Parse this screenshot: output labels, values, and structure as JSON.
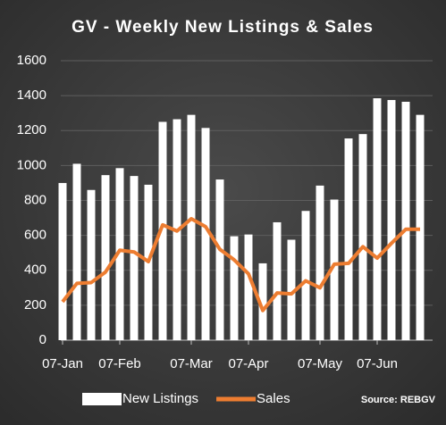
{
  "chart_data": {
    "type": "bar_line",
    "title": "GV - Weekly New Listings & Sales",
    "categories": [
      "07-Jan",
      null,
      null,
      null,
      "07-Feb",
      null,
      null,
      null,
      null,
      "07-Mar",
      null,
      null,
      null,
      "07-Apr",
      null,
      null,
      null,
      null,
      "07-May",
      null,
      null,
      null,
      "07-Jun",
      null,
      null,
      null
    ],
    "series": [
      {
        "name": "New Listings",
        "type": "bar",
        "color": "#ffffff",
        "values": [
          900,
          1010,
          860,
          945,
          985,
          940,
          890,
          1250,
          1265,
          1290,
          1215,
          920,
          595,
          605,
          440,
          675,
          575,
          740,
          885,
          805,
          1155,
          1180,
          1385,
          1375,
          1365,
          1290
        ]
      },
      {
        "name": "Sales",
        "type": "line",
        "color": "#ed7d31",
        "values": [
          220,
          325,
          330,
          390,
          515,
          505,
          450,
          660,
          625,
          695,
          650,
          520,
          460,
          380,
          170,
          270,
          265,
          340,
          300,
          435,
          440,
          535,
          470,
          555,
          635,
          635
        ]
      }
    ],
    "ylim": [
      0,
      1600
    ],
    "yticks": [
      0,
      200,
      400,
      600,
      800,
      1000,
      1200,
      1400,
      1600
    ],
    "grid": true,
    "legend": "bottom",
    "source": "Source: REBGV"
  }
}
